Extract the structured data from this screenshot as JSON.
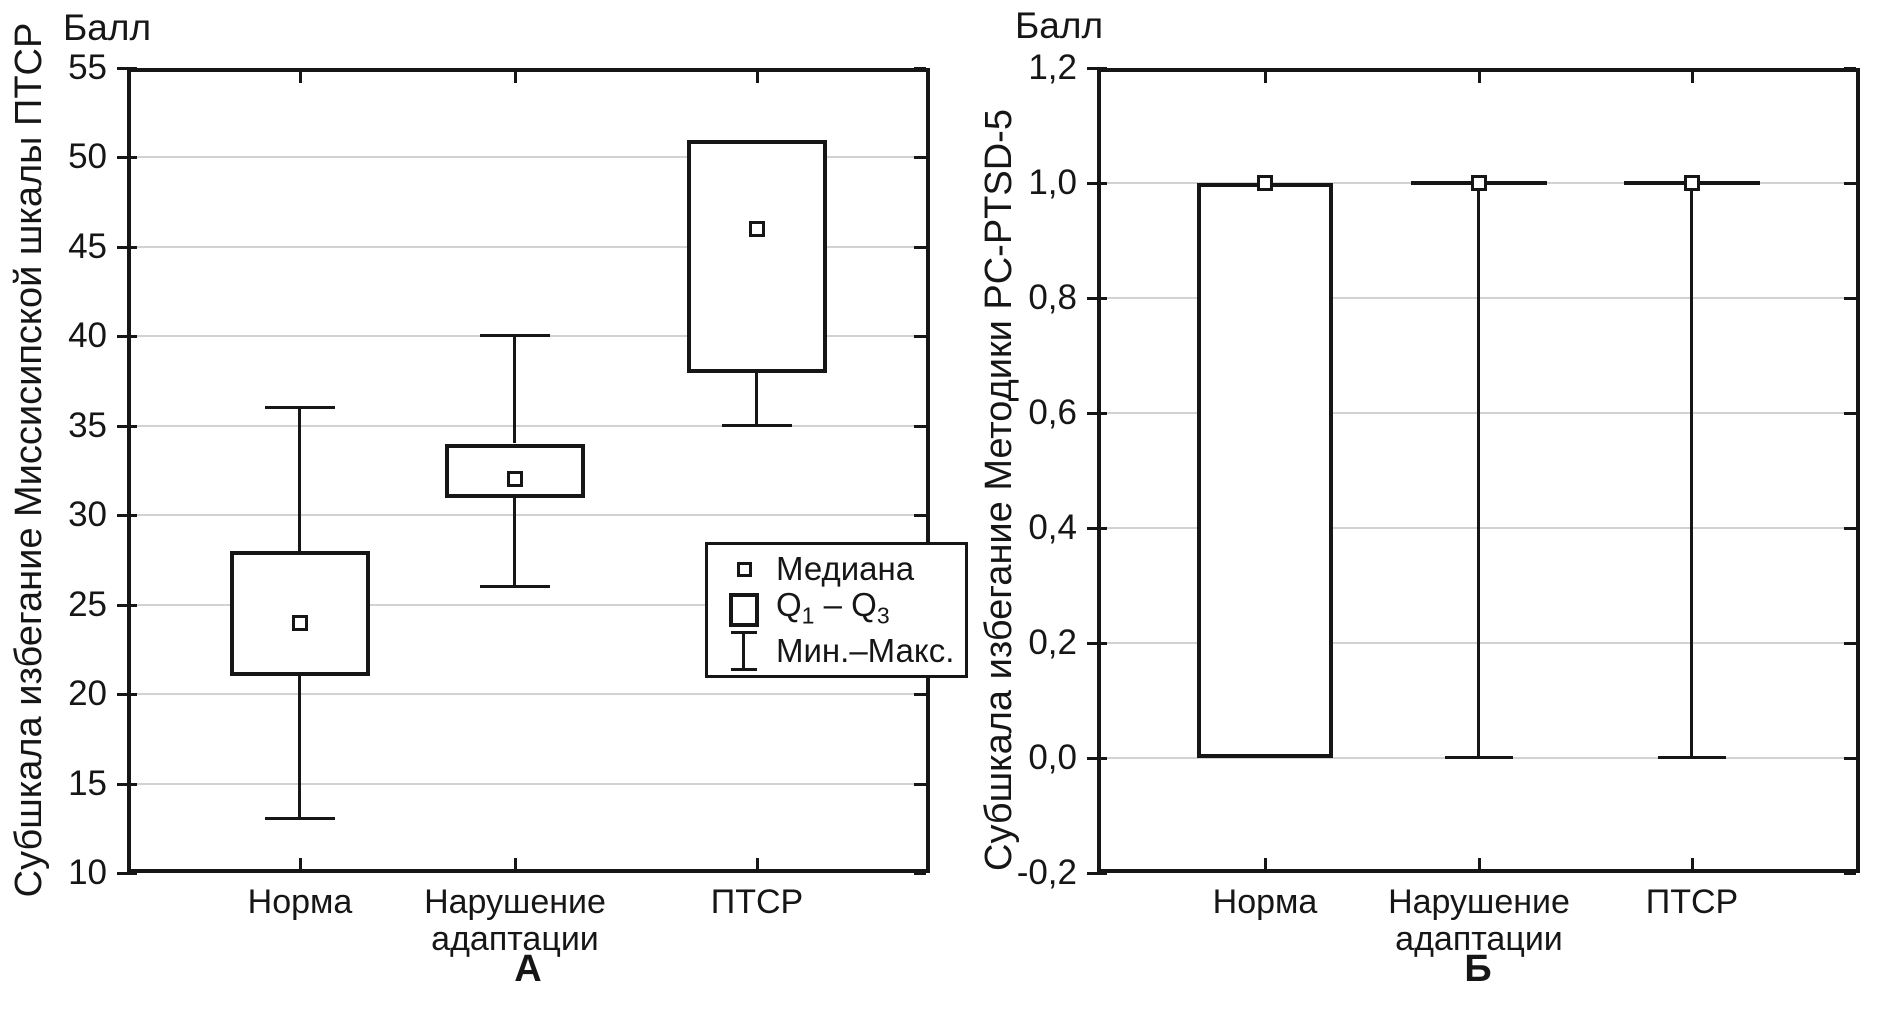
{
  "figure": {
    "background": "#ffffff",
    "ink_color": "#161616",
    "grid_color": "#d2d2d2"
  },
  "chart_data": [
    {
      "type": "boxplot",
      "panel_label": "А",
      "axis_title": "Балл",
      "ylabel": "Субшкала избегание Миссисипской шкалы ПТСР",
      "ylim": [
        10,
        55
      ],
      "grid": true,
      "yticks": [
        {
          "v": 55,
          "label": "55"
        },
        {
          "v": 50,
          "label": "50"
        },
        {
          "v": 45,
          "label": "45"
        },
        {
          "v": 40,
          "label": "40"
        },
        {
          "v": 35,
          "label": "35"
        },
        {
          "v": 30,
          "label": "30"
        },
        {
          "v": 25,
          "label": "25"
        },
        {
          "v": 20,
          "label": "20"
        },
        {
          "v": 15,
          "label": "15"
        },
        {
          "v": 10,
          "label": "10"
        }
      ],
      "categories": [
        "Норма",
        "Нарушение адаптации",
        "ПТСР"
      ],
      "series": [
        {
          "category": "Норма",
          "median": 24,
          "q1": 21,
          "q3": 28,
          "min": 13,
          "max": 36
        },
        {
          "category": "Нарушение адаптации",
          "median": 32,
          "q1": 31,
          "q3": 34,
          "min": 26,
          "max": 40
        },
        {
          "category": "ПТСР",
          "median": 46,
          "q1": 38,
          "q3": 51,
          "min": 35,
          "max": 51
        }
      ],
      "legend_position": "inside-right",
      "legend": {
        "median": "Медиана",
        "q": "Q",
        "q1_sub": "1",
        "dash": "–",
        "q3_sub": "3",
        "minmax": "Мин.–Макс."
      }
    },
    {
      "type": "boxplot",
      "panel_label": "Б",
      "axis_title": "Балл",
      "ylabel": "Субшкала избегание Методики PC-PTSD-5",
      "ylim": [
        -0.2,
        1.2
      ],
      "grid": true,
      "yticks": [
        {
          "v": 1.2,
          "label": "1,2"
        },
        {
          "v": 1.0,
          "label": "1,0"
        },
        {
          "v": 0.8,
          "label": "0,8"
        },
        {
          "v": 0.6,
          "label": "0,6"
        },
        {
          "v": 0.4,
          "label": "0,4"
        },
        {
          "v": 0.2,
          "label": "0,2"
        },
        {
          "v": 0.0,
          "label": "0,0"
        },
        {
          "v": -0.2,
          "label": "-0,2"
        }
      ],
      "categories": [
        "Норма",
        "Нарушение адаптации",
        "ПТСР"
      ],
      "series": [
        {
          "category": "Норма",
          "median": 1.0,
          "q1": 0.0,
          "q3": 1.0,
          "min": 0.0,
          "max": 1.0
        },
        {
          "category": "Нарушение адаптации",
          "median": 1.0,
          "q1": 1.0,
          "q3": 1.0,
          "min": 0.0,
          "max": 1.0
        },
        {
          "category": "ПТСР",
          "median": 1.0,
          "q1": 1.0,
          "q3": 1.0,
          "min": 0.0,
          "max": 1.0
        }
      ]
    }
  ]
}
